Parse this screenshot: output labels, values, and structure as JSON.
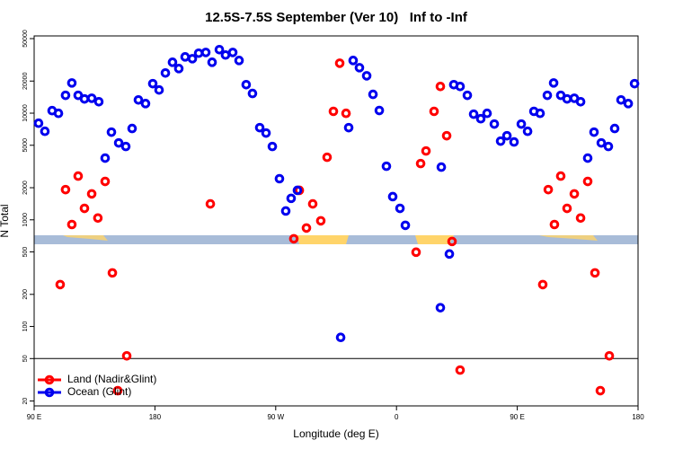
{
  "chart_data": {
    "type": "scatter",
    "title": "12.5S-7.5S September (Ver 10)   Inf to -Inf",
    "xlabel": "Longitude (deg E)",
    "ylabel": "N Total",
    "log_y": true,
    "legend": "bottom-left",
    "hline": 50,
    "xlim": [
      90,
      540
    ],
    "ylim": [
      18,
      53000
    ],
    "xticks": [
      {
        "value": 90,
        "label": "90 E"
      },
      180,
      {
        "value": 270,
        "label": "90 W"
      },
      {
        "value": 360,
        "label": "0"
      },
      {
        "value": 450,
        "label": "90 E"
      },
      {
        "value": 540,
        "label": "180"
      }
    ],
    "yticks": [
      20,
      50,
      100,
      200,
      500,
      1000,
      2000,
      5000,
      10000,
      20000,
      50000
    ],
    "series": [
      {
        "name": "Land (Nadir&Glint)",
        "color": "#ff0000",
        "x": [
          109.4,
          113.4,
          118.1,
          122.8,
          127.5,
          132.9,
          137.5,
          142.9,
          148.3,
          152.3,
          159.0,
          221.3,
          283.5,
          287.6,
          292.9,
          297.6,
          303.6,
          308.3,
          313.0,
          317.7,
          322.4,
          374.6,
          378.0,
          382.0,
          388.0,
          392.7,
          397.4,
          401.4,
          407.4,
          469.0,
          473.1,
          477.7,
          482.4,
          487.1,
          492.5,
          497.2,
          502.5,
          507.9,
          511.9,
          518.6
        ],
        "values": [
          247,
          1920,
          904,
          2570,
          1280,
          1750,
          1040,
          2290,
          318,
          25,
          53,
          1410,
          664,
          1890,
          838,
          1410,
          978,
          3860,
          10400,
          29400,
          9960,
          497,
          3370,
          4420,
          10400,
          17800,
          6140,
          627,
          39,
          247,
          1920,
          904,
          2570,
          1280,
          1750,
          1040,
          2290,
          318,
          25,
          53
        ]
      },
      {
        "name": "Ocean (Glint)",
        "color": "#0000ee",
        "x": [
          93.3,
          98.0,
          103.4,
          108.1,
          113.4,
          118.1,
          122.8,
          127.5,
          132.9,
          138.2,
          142.9,
          147.6,
          153.0,
          158.3,
          163.0,
          167.7,
          173.0,
          178.4,
          183.1,
          187.8,
          193.1,
          197.8,
          202.5,
          207.9,
          212.6,
          217.9,
          222.6,
          228.0,
          232.6,
          238.0,
          242.7,
          248.0,
          252.7,
          258.1,
          262.8,
          267.5,
          272.8,
          277.5,
          281.5,
          286.2,
          318.4,
          324.4,
          327.7,
          332.4,
          337.8,
          342.5,
          347.2,
          352.5,
          357.2,
          362.6,
          366.6,
          392.7,
          393.4,
          399.4,
          402.7,
          407.4,
          412.8,
          417.5,
          422.8,
          427.5,
          432.9,
          437.6,
          442.3,
          447.6,
          453.0,
          457.7,
          462.4,
          467.0,
          472.4,
          477.1,
          482.4,
          487.1,
          492.5,
          497.2,
          502.5,
          507.2,
          512.6,
          517.9,
          522.6,
          527.3,
          532.7,
          537.4
        ],
        "values": [
          8050,
          6760,
          10560,
          9960,
          14700,
          19200,
          14700,
          13600,
          13800,
          12800,
          3790,
          6640,
          5260,
          4870,
          7180,
          13300,
          12300,
          18900,
          16500,
          23800,
          30000,
          26200,
          33700,
          32400,
          36500,
          37100,
          30000,
          39400,
          35100,
          37100,
          31200,
          18500,
          15300,
          7310,
          6510,
          4870,
          2430,
          1210,
          1590,
          1890,
          79,
          7310,
          31200,
          26700,
          22400,
          15000,
          10600,
          3180,
          1650,
          1280,
          888,
          150,
          3120,
          478,
          18500,
          17800,
          14700,
          9780,
          8870,
          9960,
          7900,
          5470,
          6140,
          5370,
          7900,
          6760,
          10400,
          9960,
          14700,
          19200,
          14700,
          13600,
          13800,
          12800,
          3790,
          6640,
          5260,
          4870,
          7180,
          13300,
          12300,
          18900
        ]
      }
    ]
  }
}
